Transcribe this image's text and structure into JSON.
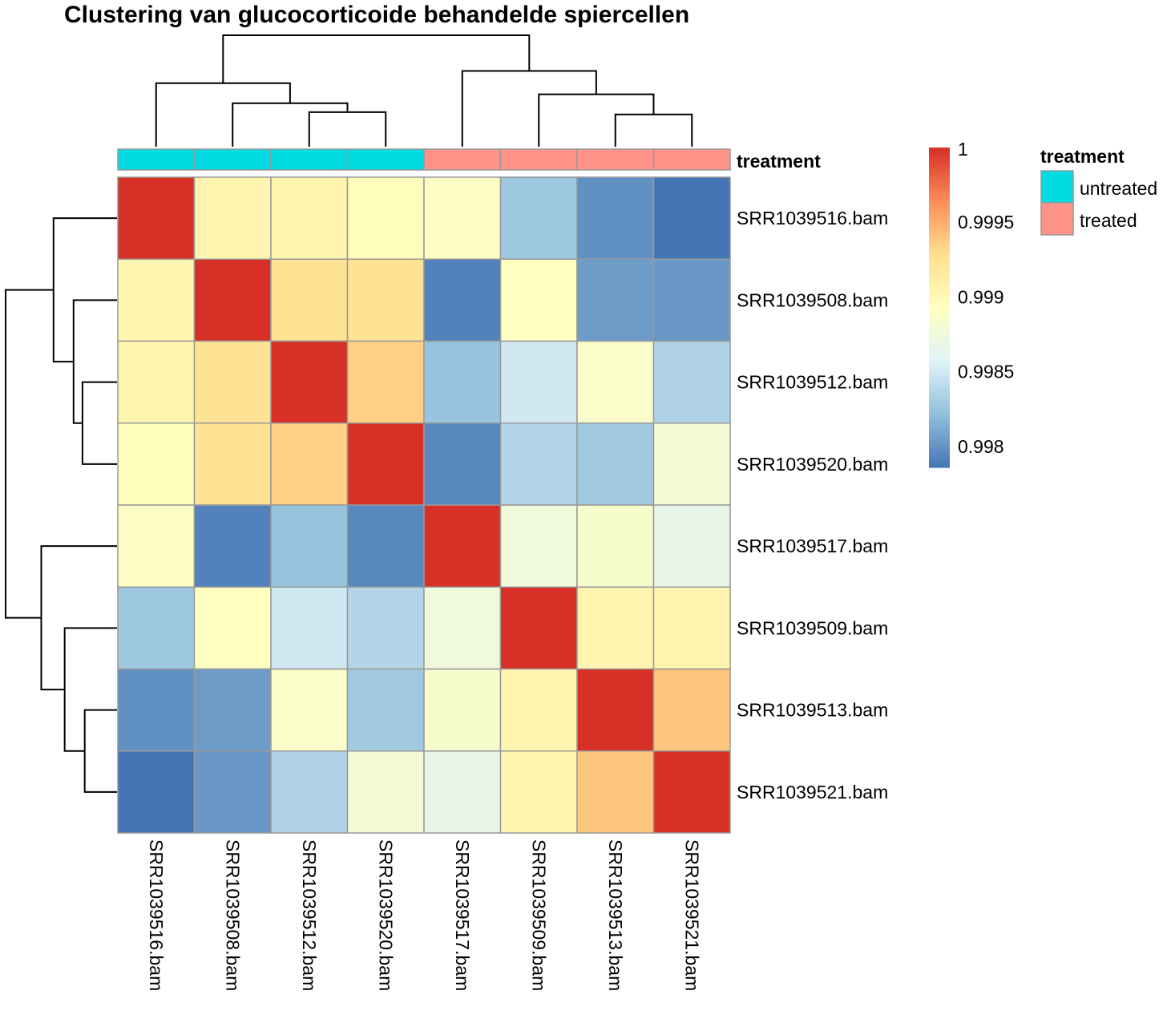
{
  "chart_data": {
    "type": "heatmap",
    "title": "Clustering van glucocorticoide behandelde spiercellen",
    "samples": [
      "SRR1039516.bam",
      "SRR1039508.bam",
      "SRR1039512.bam",
      "SRR1039520.bam",
      "SRR1039517.bam",
      "SRR1039509.bam",
      "SRR1039513.bam",
      "SRR1039521.bam"
    ],
    "row_labels": [
      "SRR1039516.bam",
      "SRR1039508.bam",
      "SRR1039512.bam",
      "SRR1039520.bam",
      "SRR1039517.bam",
      "SRR1039509.bam",
      "SRR1039513.bam",
      "SRR1039521.bam"
    ],
    "col_labels": [
      "SRR1039516.bam",
      "SRR1039508.bam",
      "SRR1039512.bam",
      "SRR1039520.bam",
      "SRR1039517.bam",
      "SRR1039509.bam",
      "SRR1039513.bam",
      "SRR1039521.bam"
    ],
    "values": [
      [
        1.0,
        0.99904,
        0.99906,
        0.99895,
        0.99889,
        0.99827,
        0.99799,
        0.99786
      ],
      [
        0.99904,
        1.0,
        0.99925,
        0.99925,
        0.99792,
        0.99893,
        0.99805,
        0.99803
      ],
      [
        0.99906,
        0.99925,
        1.0,
        0.99936,
        0.99825,
        0.9985,
        0.99887,
        0.99835
      ],
      [
        0.99895,
        0.99925,
        0.99936,
        1.0,
        0.99795,
        0.99837,
        0.99829,
        0.9988
      ],
      [
        0.99889,
        0.99792,
        0.99825,
        0.99795,
        1.0,
        0.99876,
        0.99884,
        0.99867
      ],
      [
        0.99827,
        0.99893,
        0.9985,
        0.99837,
        0.99876,
        1.0,
        0.99904,
        0.99904
      ],
      [
        0.99799,
        0.99805,
        0.99887,
        0.99829,
        0.99884,
        0.99904,
        1.0,
        0.9994
      ],
      [
        0.99786,
        0.99803,
        0.99835,
        0.9988,
        0.99867,
        0.99904,
        0.9994,
        1.0
      ]
    ],
    "color_scale": {
      "min": 0.99786,
      "max": 1.0,
      "palette": [
        "#4575B4",
        "#91BFDB",
        "#E0F3F8",
        "#FFFFBF",
        "#FEE090",
        "#FC8D59",
        "#D73027"
      ],
      "ticks": [
        1,
        0.9995,
        0.999,
        0.9985,
        0.998
      ],
      "tick_labels": [
        "1",
        "0.9995",
        "0.999",
        "0.9985",
        "0.998"
      ]
    },
    "annotation": {
      "name": "treatment",
      "values": [
        "untreated",
        "untreated",
        "untreated",
        "untreated",
        "treated",
        "treated",
        "treated",
        "treated"
      ],
      "levels": [
        {
          "label": "untreated",
          "color": "#00DAE0"
        },
        {
          "label": "treated",
          "color": "#FF9289"
        }
      ]
    },
    "dendrogram": {
      "merges": [
        {
          "a": 2,
          "b": 3,
          "height": 0.31
        },
        {
          "a": 1,
          "b": "m0",
          "height": 0.39
        },
        {
          "a": 0,
          "b": "m1",
          "height": 0.57
        },
        {
          "a": 6,
          "b": 7,
          "height": 0.29
        },
        {
          "a": 5,
          "b": "m3",
          "height": 0.47
        },
        {
          "a": 4,
          "b": "m4",
          "height": 0.68
        },
        {
          "a": "m2",
          "b": "m5",
          "height": 1.0
        }
      ]
    },
    "legend_placement": "right"
  }
}
